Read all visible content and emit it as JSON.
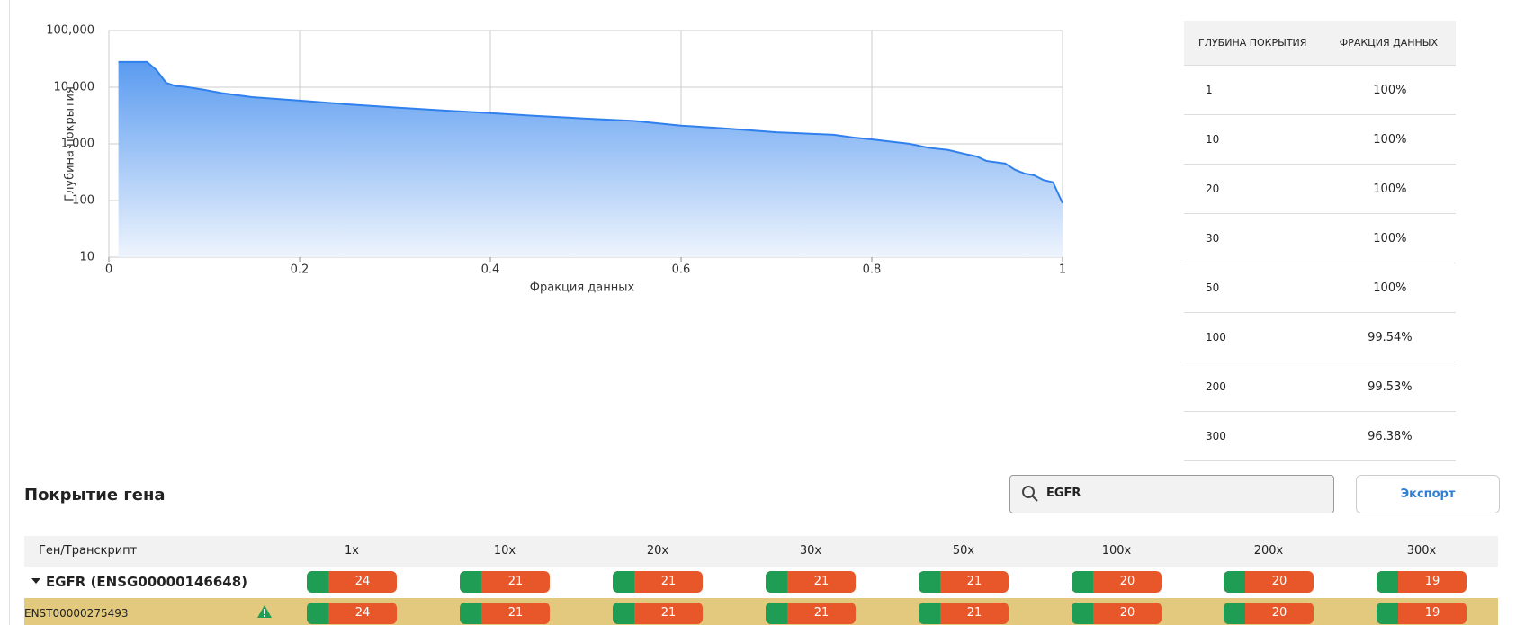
{
  "chart_data": {
    "type": "area",
    "xlabel": "Фракция данных",
    "ylabel": "Глубина покрытия",
    "x": [
      0.01,
      0.04,
      0.05,
      0.06,
      0.07,
      0.08,
      0.1,
      0.12,
      0.15,
      0.2,
      0.25,
      0.3,
      0.35,
      0.4,
      0.45,
      0.5,
      0.55,
      0.6,
      0.65,
      0.7,
      0.76,
      0.78,
      0.8,
      0.84,
      0.86,
      0.88,
      0.9,
      0.91,
      0.92,
      0.94,
      0.95,
      0.96,
      0.97,
      0.98,
      0.99,
      1
    ],
    "values": [
      28000,
      28000,
      20000,
      12000,
      10500,
      10200,
      9000,
      7800,
      6700,
      5800,
      5000,
      4400,
      3900,
      3500,
      3100,
      2800,
      2550,
      2100,
      1850,
      1600,
      1450,
      1300,
      1200,
      1000,
      850,
      780,
      650,
      600,
      500,
      450,
      350,
      300,
      280,
      230,
      210,
      90
    ],
    "color": "#2f80ed",
    "xlim": [
      0,
      1
    ],
    "ylim": [
      10,
      100000
    ],
    "log_y": true,
    "grid": true,
    "xticks": [
      0,
      0.2,
      0.4,
      0.6,
      0.8,
      1
    ],
    "yticks": [
      10,
      100,
      {
        "value": 1000,
        "label": "1,000"
      },
      {
        "value": 10000,
        "label": "10,000"
      },
      {
        "value": 100000,
        "label": "100,000"
      }
    ]
  },
  "depth_table": {
    "headers": [
      "ГЛУБИНА ПОКРЫТИЯ",
      "ФРАКЦИЯ ДАННЫХ"
    ],
    "rows": [
      [
        "1",
        "100%"
      ],
      [
        "10",
        "100%"
      ],
      [
        "20",
        "100%"
      ],
      [
        "30",
        "100%"
      ],
      [
        "50",
        "100%"
      ],
      [
        "100",
        "99.54%"
      ],
      [
        "200",
        "99.53%"
      ],
      [
        "300",
        "96.38%"
      ]
    ]
  },
  "gene_coverage": {
    "title": "Покрытие гена",
    "search": "EGFR",
    "export": "Экспорт",
    "headers": [
      "Ген/Транскрипт",
      "1x",
      "10x",
      "20x",
      "30x",
      "50x",
      "100x",
      "200x",
      "300x"
    ],
    "rows": [
      {
        "label": "EGFR (ENSG00000146648)",
        "values": [
          24,
          21,
          21,
          21,
          21,
          20,
          20,
          19
        ]
      },
      {
        "label": "ENST00000275493",
        "values": [
          24,
          21,
          21,
          21,
          21,
          20,
          20,
          19
        ]
      }
    ]
  }
}
